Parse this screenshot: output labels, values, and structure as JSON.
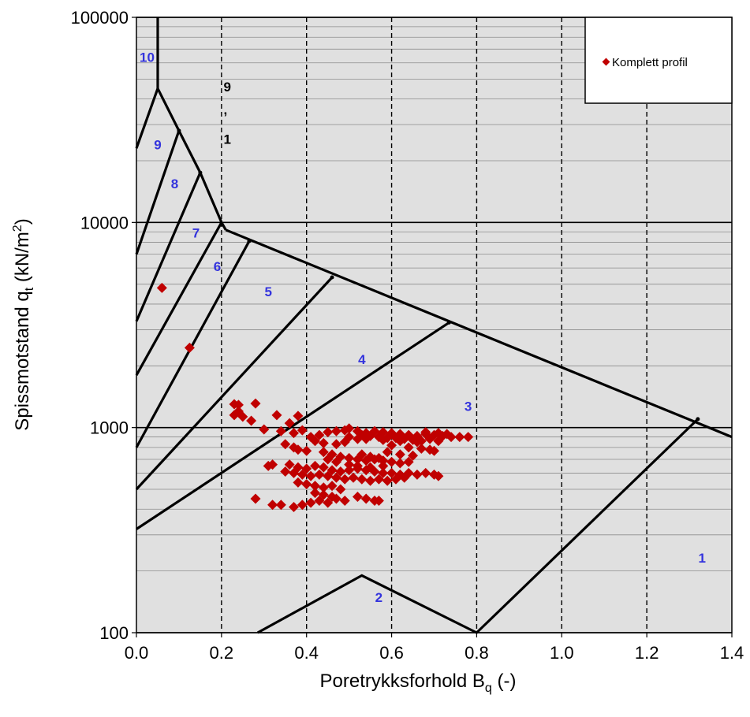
{
  "chart_data": {
    "type": "scatter",
    "title": "",
    "xlabel": {
      "base": "Poretrykksforhold B",
      "sub": "q",
      "tail": " (-)"
    },
    "ylabel": {
      "base": "Spissmotstand q",
      "sub": "t",
      "mid": " (kN/m",
      "sup": "2",
      "tail": ")"
    },
    "xlim": [
      0,
      1.4
    ],
    "ylim": [
      100,
      100000
    ],
    "yscale": "log",
    "xticks": [
      0.0,
      0.2,
      0.4,
      0.6,
      0.8,
      1.0,
      1.2,
      1.4
    ],
    "xtick_labels": [
      "0.0",
      "0.2",
      "0.4",
      "0.6",
      "0.8",
      "1.0",
      "1.2",
      "1.4"
    ],
    "yticks": [
      100,
      1000,
      10000,
      100000
    ],
    "ytick_labels": [
      "100",
      "1000",
      "10000",
      "100000"
    ],
    "grid": {
      "y_minor": true,
      "x_dashed": [
        0.2,
        0.4,
        0.6,
        0.8,
        1.0,
        1.2
      ]
    },
    "legend": {
      "position": "top-right",
      "entries": [
        "Komplett profil"
      ]
    },
    "colors": {
      "marker": "#c00000",
      "plot_bg": "#e0e0e0",
      "zone_label": "#3333dd",
      "lines": "#000000"
    },
    "zone_boundaries": [
      {
        "name": "b1",
        "points": [
          [
            0.05,
            100000
          ],
          [
            0.05,
            45000
          ]
        ]
      },
      {
        "name": "b2",
        "points": [
          [
            0.05,
            45000
          ],
          [
            0.0,
            23000
          ]
        ]
      },
      {
        "name": "b3",
        "points": [
          [
            0.05,
            45000
          ],
          [
            0.1,
            28000
          ],
          [
            0.15,
            17500
          ],
          [
            0.2,
            10000
          ],
          [
            0.21,
            9200
          ]
        ]
      },
      {
        "name": "b4",
        "points": [
          [
            0.21,
            9200
          ],
          [
            1.4,
            900
          ]
        ]
      },
      {
        "name": "b5",
        "points": [
          [
            0.0,
            7000
          ],
          [
            0.1,
            28000
          ]
        ]
      },
      {
        "name": "b6",
        "points": [
          [
            0.0,
            3300
          ],
          [
            0.15,
            17500
          ]
        ]
      },
      {
        "name": "b7",
        "points": [
          [
            0.0,
            1800
          ],
          [
            0.2,
            10000
          ]
        ]
      },
      {
        "name": "b8",
        "points": [
          [
            0.0,
            800
          ],
          [
            0.265,
            8100
          ]
        ]
      },
      {
        "name": "b9",
        "points": [
          [
            0.0,
            500
          ],
          [
            0.46,
            5400
          ]
        ]
      },
      {
        "name": "b10",
        "points": [
          [
            0.0,
            320
          ],
          [
            0.735,
            3250
          ]
        ]
      },
      {
        "name": "b11",
        "points": [
          [
            0.285,
            100
          ],
          [
            0.53,
            190
          ],
          [
            0.8,
            100
          ],
          [
            1.32,
            1100
          ]
        ]
      }
    ],
    "zone_labels": [
      {
        "text": "10",
        "x": 0.025,
        "y": 64000
      },
      {
        "text": "9",
        "x": 0.05,
        "y": 24000
      },
      {
        "text": "8",
        "x": 0.09,
        "y": 15500
      },
      {
        "text": "7",
        "x": 0.14,
        "y": 8900
      },
      {
        "text": "6",
        "x": 0.19,
        "y": 6100
      },
      {
        "text": "5",
        "x": 0.31,
        "y": 4600
      },
      {
        "text": "4",
        "x": 0.53,
        "y": 2150
      },
      {
        "text": "3",
        "x": 0.78,
        "y": 1270
      },
      {
        "text": "2",
        "x": 0.57,
        "y": 149
      },
      {
        "text": "1",
        "x": 1.33,
        "y": 232
      }
    ],
    "annotations": [
      {
        "text": "9",
        "x": 0.205,
        "y": 46000
      },
      {
        "text": ",",
        "x": 0.205,
        "y": 35500
      },
      {
        "text": "1",
        "x": 0.205,
        "y": 25500
      }
    ],
    "series": [
      {
        "name": "Komplett profil",
        "points": [
          [
            0.06,
            4800
          ],
          [
            0.125,
            2450
          ],
          [
            0.23,
            1300
          ],
          [
            0.24,
            1290
          ],
          [
            0.28,
            1310
          ],
          [
            0.24,
            1200
          ],
          [
            0.23,
            1150
          ],
          [
            0.25,
            1130
          ],
          [
            0.27,
            1080
          ],
          [
            0.33,
            1150
          ],
          [
            0.38,
            1140
          ],
          [
            0.36,
            1050
          ],
          [
            0.3,
            980
          ],
          [
            0.34,
            960
          ],
          [
            0.37,
            940
          ],
          [
            0.39,
            970
          ],
          [
            0.41,
            900
          ],
          [
            0.43,
            920
          ],
          [
            0.45,
            950
          ],
          [
            0.47,
            960
          ],
          [
            0.49,
            970
          ],
          [
            0.5,
            990
          ],
          [
            0.52,
            960
          ],
          [
            0.54,
            940
          ],
          [
            0.56,
            960
          ],
          [
            0.58,
            950
          ],
          [
            0.6,
            940
          ],
          [
            0.62,
            930
          ],
          [
            0.64,
            920
          ],
          [
            0.66,
            910
          ],
          [
            0.68,
            930
          ],
          [
            0.7,
            920
          ],
          [
            0.72,
            910
          ],
          [
            0.74,
            900
          ],
          [
            0.76,
            900
          ],
          [
            0.78,
            900
          ],
          [
            0.5,
            900
          ],
          [
            0.52,
            880
          ],
          [
            0.54,
            880
          ],
          [
            0.58,
            870
          ],
          [
            0.62,
            860
          ],
          [
            0.66,
            850
          ],
          [
            0.42,
            860
          ],
          [
            0.44,
            840
          ],
          [
            0.47,
            830
          ],
          [
            0.49,
            850
          ],
          [
            0.6,
            820
          ],
          [
            0.64,
            800
          ],
          [
            0.67,
            790
          ],
          [
            0.69,
            780
          ],
          [
            0.7,
            770
          ],
          [
            0.35,
            830
          ],
          [
            0.37,
            800
          ],
          [
            0.38,
            780
          ],
          [
            0.4,
            770
          ],
          [
            0.44,
            760
          ],
          [
            0.46,
            740
          ],
          [
            0.48,
            720
          ],
          [
            0.5,
            710
          ],
          [
            0.52,
            700
          ],
          [
            0.54,
            690
          ],
          [
            0.56,
            700
          ],
          [
            0.58,
            690
          ],
          [
            0.6,
            680
          ],
          [
            0.62,
            670
          ],
          [
            0.64,
            680
          ],
          [
            0.59,
            760
          ],
          [
            0.62,
            740
          ],
          [
            0.65,
            730
          ],
          [
            0.32,
            660
          ],
          [
            0.31,
            650
          ],
          [
            0.36,
            660
          ],
          [
            0.38,
            640
          ],
          [
            0.4,
            630
          ],
          [
            0.42,
            650
          ],
          [
            0.44,
            640
          ],
          [
            0.46,
            620
          ],
          [
            0.48,
            610
          ],
          [
            0.5,
            620
          ],
          [
            0.52,
            630
          ],
          [
            0.54,
            620
          ],
          [
            0.56,
            610
          ],
          [
            0.58,
            600
          ],
          [
            0.6,
            600
          ],
          [
            0.62,
            590
          ],
          [
            0.64,
            600
          ],
          [
            0.66,
            590
          ],
          [
            0.68,
            600
          ],
          [
            0.7,
            590
          ],
          [
            0.71,
            580
          ],
          [
            0.35,
            610
          ],
          [
            0.37,
            600
          ],
          [
            0.39,
            590
          ],
          [
            0.41,
            580
          ],
          [
            0.43,
            590
          ],
          [
            0.45,
            580
          ],
          [
            0.47,
            570
          ],
          [
            0.49,
            560
          ],
          [
            0.51,
            570
          ],
          [
            0.53,
            560
          ],
          [
            0.55,
            550
          ],
          [
            0.57,
            560
          ],
          [
            0.59,
            550
          ],
          [
            0.61,
            560
          ],
          [
            0.63,
            570
          ],
          [
            0.38,
            540
          ],
          [
            0.4,
            530
          ],
          [
            0.42,
            520
          ],
          [
            0.44,
            510
          ],
          [
            0.46,
            520
          ],
          [
            0.48,
            500
          ],
          [
            0.28,
            450
          ],
          [
            0.32,
            420
          ],
          [
            0.34,
            420
          ],
          [
            0.37,
            410
          ],
          [
            0.39,
            420
          ],
          [
            0.41,
            430
          ],
          [
            0.43,
            440
          ],
          [
            0.45,
            430
          ],
          [
            0.47,
            450
          ],
          [
            0.49,
            440
          ],
          [
            0.52,
            460
          ],
          [
            0.54,
            450
          ],
          [
            0.56,
            440
          ],
          [
            0.57,
            440
          ],
          [
            0.42,
            480
          ],
          [
            0.44,
            470
          ],
          [
            0.46,
            460
          ],
          [
            0.5,
            660
          ],
          [
            0.52,
            650
          ],
          [
            0.55,
            640
          ],
          [
            0.58,
            650
          ],
          [
            0.53,
            740
          ],
          [
            0.55,
            720
          ],
          [
            0.57,
            710
          ],
          [
            0.45,
            700
          ],
          [
            0.47,
            680
          ],
          [
            0.61,
            890
          ],
          [
            0.63,
            880
          ],
          [
            0.65,
            870
          ],
          [
            0.67,
            860
          ],
          [
            0.53,
            920
          ],
          [
            0.55,
            910
          ],
          [
            0.57,
            900
          ],
          [
            0.59,
            890
          ],
          [
            0.68,
            950
          ],
          [
            0.71,
            940
          ],
          [
            0.73,
            930
          ],
          [
            0.69,
            880
          ],
          [
            0.71,
            860
          ]
        ]
      }
    ]
  }
}
